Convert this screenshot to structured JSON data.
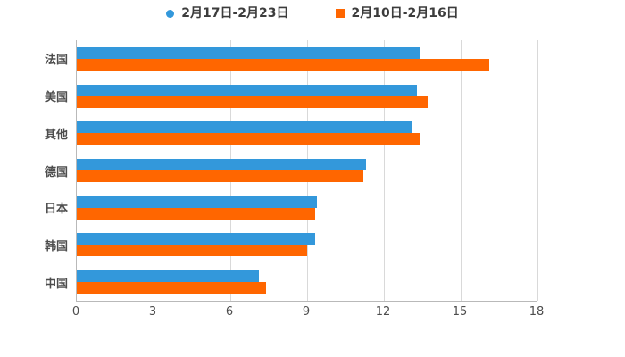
{
  "chart_data": {
    "type": "bar",
    "orientation": "horizontal",
    "title": "",
    "xlabel": "",
    "ylabel": "",
    "categories": [
      "法国",
      "美国",
      "其他",
      "德国",
      "日本",
      "韩国",
      "中国"
    ],
    "series": [
      {
        "name": "2月17日-2月23日",
        "color": "#3398db",
        "legend_marker": "circle",
        "values": [
          13.4,
          13.3,
          13.1,
          11.3,
          9.4,
          9.3,
          7.1
        ]
      },
      {
        "name": "2月10日-2月16日",
        "color": "#ff6600",
        "legend_marker": "square",
        "values": [
          16.1,
          13.7,
          13.4,
          11.2,
          9.3,
          9.0,
          7.4
        ]
      }
    ],
    "xlim": [
      0,
      18
    ],
    "xticks": [
      0,
      3,
      6,
      9,
      12,
      15,
      18
    ],
    "grid": true,
    "legend_position": "top-center"
  },
  "colors": {
    "background": "#ffffff",
    "gridline": "#d9d9d9",
    "axis_line": "#b9b9b9",
    "tick_label": "#4d4d4d",
    "category_label": "#4d4d4d",
    "legend_text": "#3c3c3c"
  }
}
